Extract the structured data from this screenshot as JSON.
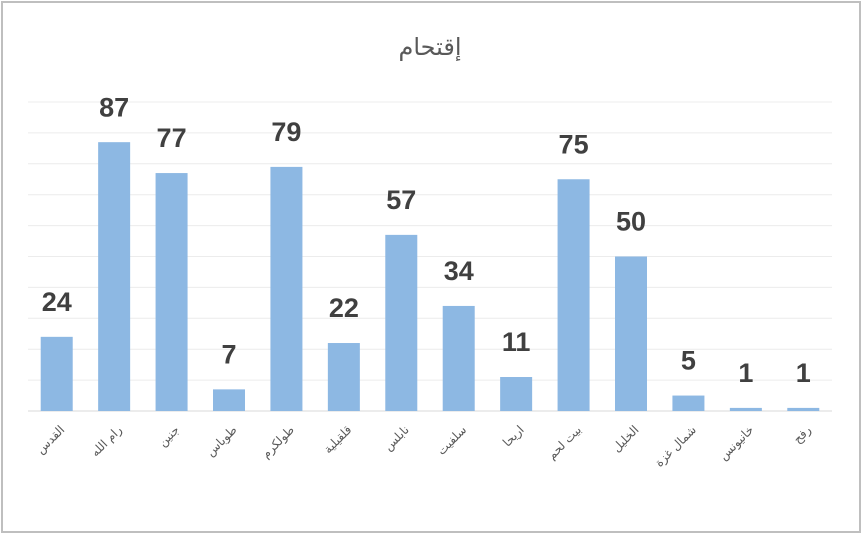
{
  "chart_data": {
    "type": "bar",
    "title": "إقتحام",
    "categories": [
      "القدس",
      "رام الله",
      "جنين",
      "طوباس",
      "طولكرم",
      "قلقيلية",
      "نابلس",
      "سلفيت",
      "اريحا",
      "بيت لحم",
      "الخليل",
      "شمال غزة",
      "خانيونس",
      "رفح"
    ],
    "values": [
      24,
      87,
      77,
      7,
      79,
      22,
      57,
      34,
      11,
      75,
      50,
      5,
      1,
      1
    ],
    "color": "#8db8e3",
    "ylim": [
      0,
      100
    ],
    "yticks": [
      0,
      10,
      20,
      30,
      40,
      50,
      60,
      70,
      80,
      90,
      100
    ],
    "grid": true
  }
}
